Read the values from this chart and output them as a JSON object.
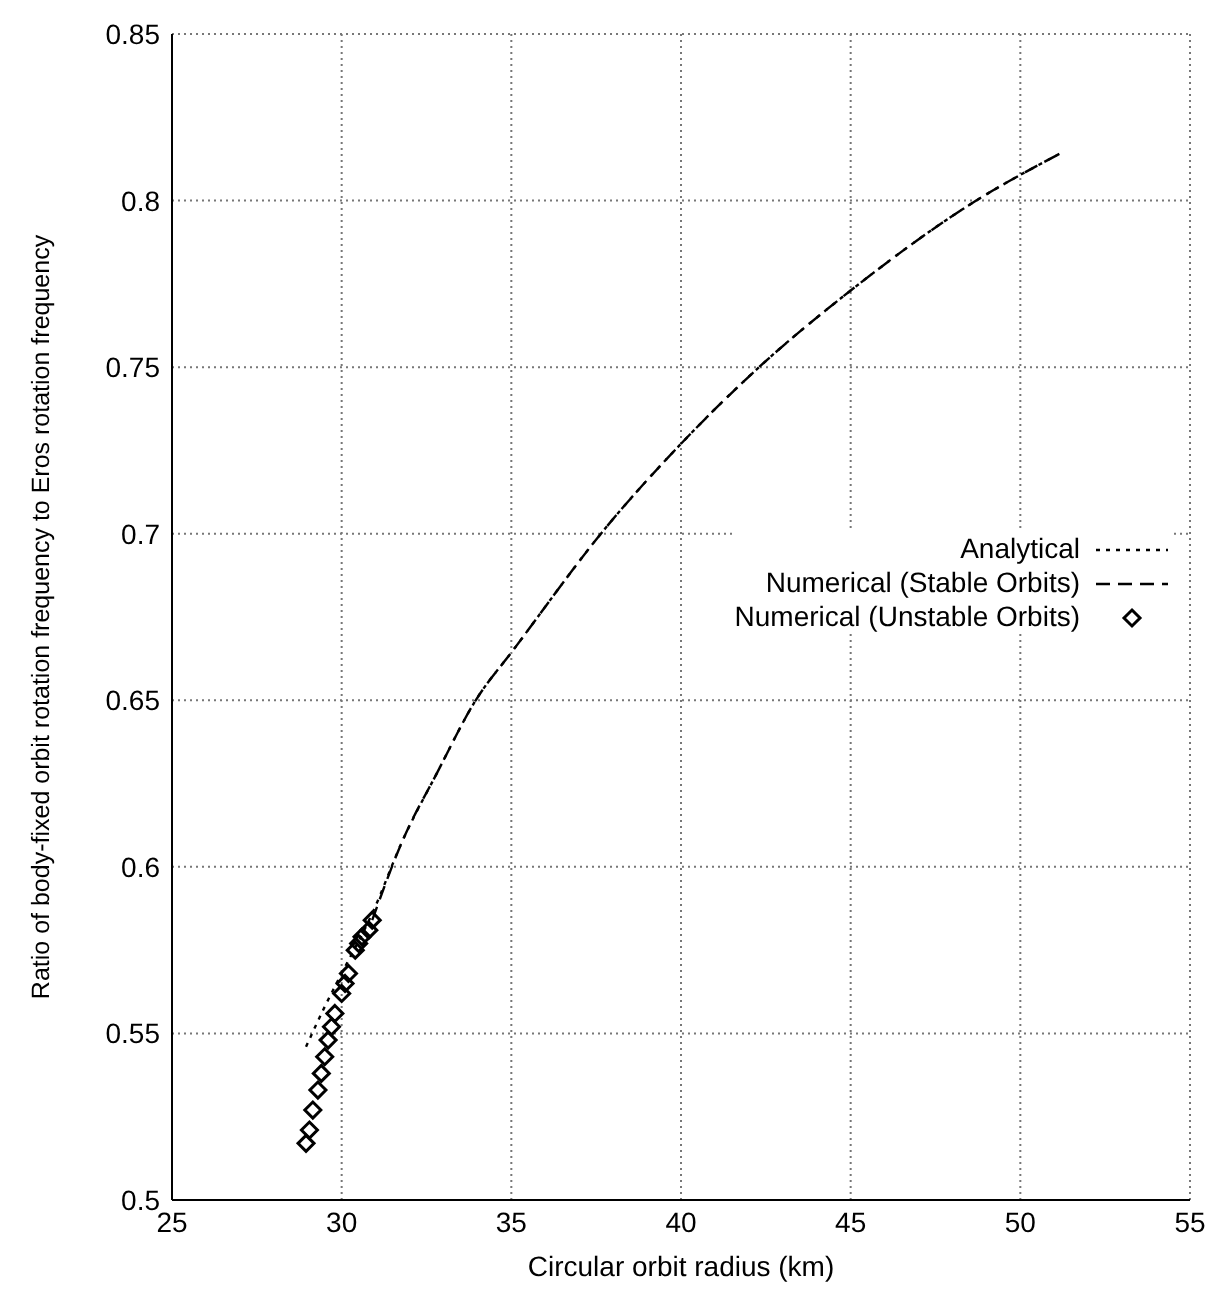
{
  "chart_data": {
    "type": "line",
    "xlabel": "Circular orbit radius (km)",
    "ylabel": "Ratio of body-fixed orbit rotation frequency to Eros rotation frequency",
    "xlim": [
      25,
      55
    ],
    "xticks": [
      25,
      30,
      35,
      40,
      45,
      50,
      55
    ],
    "ylim": [
      0.5,
      0.85
    ],
    "yticks": [
      0.5,
      0.55,
      0.6,
      0.65,
      0.7,
      0.75,
      0.8,
      0.85
    ],
    "grid": true,
    "legend": "right",
    "series": [
      {
        "name": "Analytical",
        "line_style": "dotted",
        "color": "#000000",
        "x": [
          28.95,
          29.5,
          30,
          30.9,
          31.8,
          32.8,
          33.95,
          35.05,
          37.8,
          40,
          42.3,
          45,
          48.7,
          51.15
        ],
        "values": [
          0.546,
          0.558,
          0.568,
          0.586,
          0.608,
          0.628,
          0.65,
          0.665,
          0.702,
          0.727,
          0.75,
          0.773,
          0.8,
          0.814
        ]
      },
      {
        "name": "Numerical (Stable Orbits)",
        "line_style": "dashed",
        "color": "#000000",
        "x": [
          30.9,
          31.8,
          32.8,
          33.95,
          35.05,
          37.8,
          40,
          42.3,
          45,
          48.7,
          51.15
        ],
        "values": [
          0.584,
          0.608,
          0.628,
          0.65,
          0.665,
          0.702,
          0.727,
          0.75,
          0.773,
          0.8,
          0.814
        ]
      },
      {
        "name": "Numerical (Unstable Orbits)",
        "type": "scatter",
        "marker": "diamond",
        "color": "#000000",
        "x": [
          28.95,
          29.05,
          29.15,
          29.3,
          29.4,
          29.5,
          29.6,
          29.7,
          29.8,
          30,
          30.1,
          30.2,
          30.4,
          30.5,
          30.6,
          30.8,
          30.9
        ],
        "values": [
          0.517,
          0.521,
          0.527,
          0.533,
          0.538,
          0.543,
          0.548,
          0.552,
          0.556,
          0.562,
          0.565,
          0.568,
          0.575,
          0.577,
          0.579,
          0.581,
          0.584
        ]
      }
    ]
  }
}
